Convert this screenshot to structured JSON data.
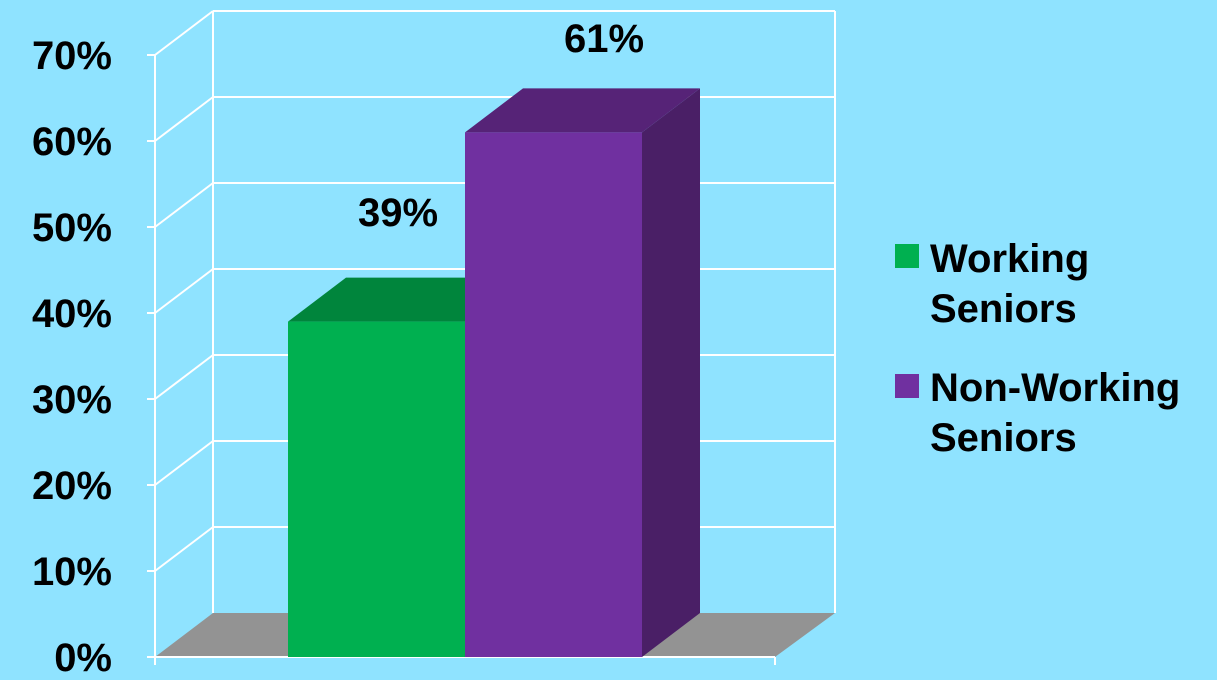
{
  "chart_data": {
    "type": "bar",
    "title": "",
    "xlabel": "",
    "ylabel": "",
    "categories": [
      ""
    ],
    "series": [
      {
        "name": "Working Seniors",
        "legend_lines": [
          "Working",
          "Seniors"
        ],
        "values": [
          39
        ],
        "data_label": "39%",
        "color": "#00b050",
        "top_color": "#00853c",
        "side_color": "#007a37"
      },
      {
        "name": "Non-Working Seniors",
        "legend_lines": [
          "Non-Working",
          "Seniors"
        ],
        "values": [
          61
        ],
        "data_label": "61%",
        "color": "#7030a0",
        "top_color": "#562377",
        "side_color": "#4a1f66"
      }
    ],
    "ylim": [
      0,
      70
    ],
    "ytick_labels": [
      "0%",
      "10%",
      "20%",
      "30%",
      "40%",
      "50%",
      "60%",
      "70%"
    ],
    "grid": true,
    "legend_position": "right",
    "style": "3d-column",
    "background_color": "#8fe3ff",
    "floor_color": "#939393",
    "grid_color": "#ffffff"
  }
}
